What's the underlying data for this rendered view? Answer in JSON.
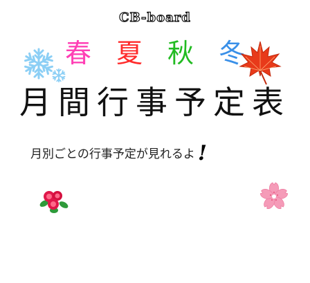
{
  "logo": {
    "text": "CB-board"
  },
  "seasons": [
    {
      "label": "春",
      "color": "#ff3fb5"
    },
    {
      "label": "夏",
      "color": "#ff2a2a"
    },
    {
      "label": "秋",
      "color": "#22bb22"
    },
    {
      "label": "冬",
      "color": "#3a90e8"
    }
  ],
  "title": "月間行事予定表",
  "subtitle": {
    "text": "月別ごとの行事予定が見れるよ",
    "exclamation": "!"
  },
  "icons": {
    "snowflake": "snowflake-icon",
    "maple_leaf": "maple-leaf-icon",
    "rose": "rose-icon",
    "sakura": "sakura-icon"
  },
  "colors": {
    "snow": "#8ccff5",
    "maple": "#e83a1a",
    "rose": "#e0174a",
    "sakura": "#f59bb8"
  }
}
